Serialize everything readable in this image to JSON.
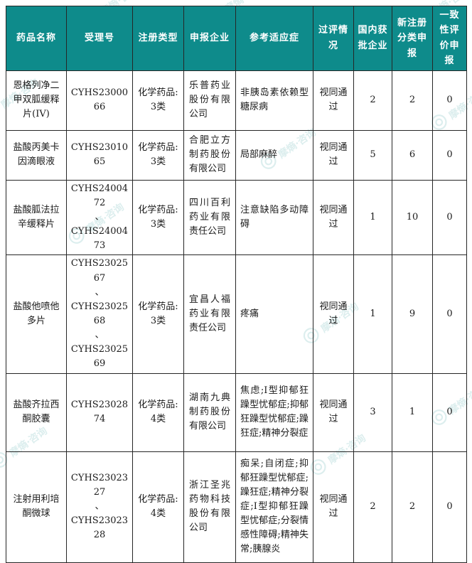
{
  "watermark": {
    "text": "摩熵·咨询",
    "color": "#0F8B8B"
  },
  "theme": {
    "header_bg": "#0E8B8B",
    "header_text": "#FFFFFF",
    "border_color": "#262626",
    "body_text": "#1A1A1A"
  },
  "table": {
    "column_keys": [
      "drug_name",
      "acceptance_no",
      "reg_type",
      "applicant",
      "indication",
      "review_status",
      "domestic_approved",
      "new_reg_filings",
      "consistency_filings"
    ],
    "columns": [
      {
        "key": "drug_name",
        "label": "药品名称"
      },
      {
        "key": "acceptance_no",
        "label": "受理号"
      },
      {
        "key": "reg_type",
        "label": "注册类型"
      },
      {
        "key": "applicant",
        "label": "申报企业"
      },
      {
        "key": "indication",
        "label": "参考适应症"
      },
      {
        "key": "review_status",
        "label": "过评情况"
      },
      {
        "key": "domestic_approved",
        "label": "国内获批企业"
      },
      {
        "key": "new_reg_filings",
        "label": "新注册分类申报"
      },
      {
        "key": "consistency_filings",
        "label": "一致性评价申报"
      }
    ],
    "rows": [
      {
        "drug_name": "恩格列净二甲双胍缓释片(IV)",
        "acceptance_no": "CYHS2300066",
        "reg_type": "化学药品: 3类",
        "applicant": "乐普药业股份有限公司",
        "indication": "非胰岛素依赖型糖尿病",
        "review_status": "视同通过",
        "domestic_approved": "2",
        "new_reg_filings": "2",
        "consistency_filings": "0"
      },
      {
        "drug_name": "盐酸丙美卡因滴眼液",
        "acceptance_no": "CYHS2301065",
        "reg_type": "化学药品: 3类",
        "applicant": "合肥立方制药股份有限公司",
        "indication": "局部麻醉",
        "review_status": "视同通过",
        "domestic_approved": "5",
        "new_reg_filings": "6",
        "consistency_filings": "0"
      },
      {
        "drug_name": "盐酸胍法拉辛缓释片",
        "acceptance_no": "CYHS2400472\n、\nCYHS2400473",
        "reg_type": "化学药品: 3类",
        "applicant": "四川百利药业有限责任公司",
        "indication": "注意缺陷多动障碍",
        "review_status": "视同通过",
        "domestic_approved": "1",
        "new_reg_filings": "10",
        "consistency_filings": "0"
      },
      {
        "drug_name": "盐酸他喷他多片",
        "acceptance_no": "CYHS2302567\n、\nCYHS2302568\n、\nCYHS2302569",
        "reg_type": "化学药品: 3类",
        "applicant": "宜昌人福药业有限责任公司",
        "indication": "疼痛",
        "review_status": "视同通过",
        "domestic_approved": "1",
        "new_reg_filings": "9",
        "consistency_filings": "0"
      },
      {
        "drug_name": "盐酸齐拉西酮胶囊",
        "acceptance_no": "CYHS2302874",
        "reg_type": "化学药品: 4类",
        "applicant": "湖南九典制药股份有限公司",
        "indication": "焦虑;I型抑郁狂躁型忧郁症;抑郁狂躁型忧郁症;躁狂症;精神分裂症",
        "review_status": "视同通过",
        "domestic_approved": "3",
        "new_reg_filings": "1",
        "consistency_filings": "0"
      },
      {
        "drug_name": "注射用利培酮微球",
        "acceptance_no": "CYHS2302327\n、\nCYHS2302328",
        "reg_type": "化学药品: 4类",
        "applicant": "浙江圣兆药物科技股份有限公司",
        "indication": "痴呆;自闭症;抑郁狂躁型忧郁症;躁狂症;精神分裂症;I型抑郁狂躁型忧郁症;分裂情感性障碍;精神失常;胰腺炎",
        "review_status": "视同通过",
        "domestic_approved": "2",
        "new_reg_filings": "2",
        "consistency_filings": "0"
      }
    ]
  }
}
